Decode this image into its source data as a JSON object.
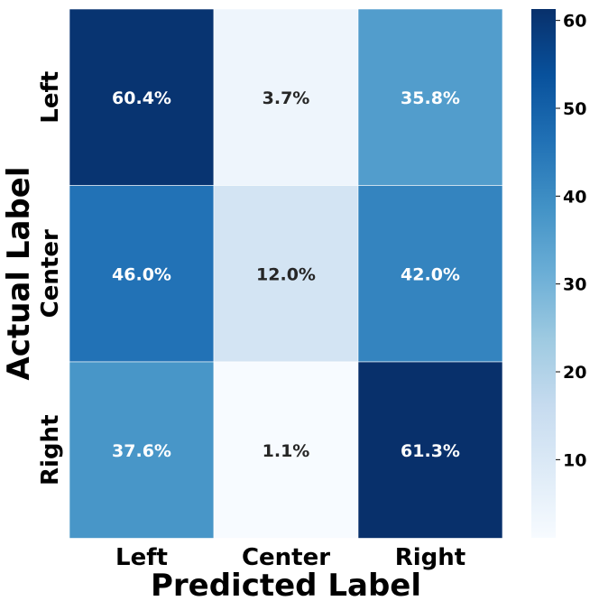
{
  "chart_data": {
    "type": "heatmap",
    "xlabel": "Predicted Label",
    "ylabel": "Actual Label",
    "x_categories": [
      "Left",
      "Center",
      "Right"
    ],
    "y_categories": [
      "Left",
      "Center",
      "Right"
    ],
    "values": [
      [
        60.4,
        3.7,
        35.8
      ],
      [
        46.0,
        12.0,
        42.0
      ],
      [
        37.6,
        1.1,
        61.3
      ]
    ],
    "cell_labels": [
      [
        "60.4%",
        "3.7%",
        "35.8%"
      ],
      [
        "46.0%",
        "12.0%",
        "42.0%"
      ],
      [
        "37.6%",
        "1.1%",
        "61.3%"
      ]
    ],
    "colormap": "Blues",
    "colorbar": {
      "range": [
        1.1,
        61.3
      ],
      "ticks": [
        10,
        20,
        30,
        40,
        50,
        60
      ],
      "tick_labels": [
        "10",
        "20",
        "30",
        "40",
        "50",
        "60"
      ]
    }
  }
}
